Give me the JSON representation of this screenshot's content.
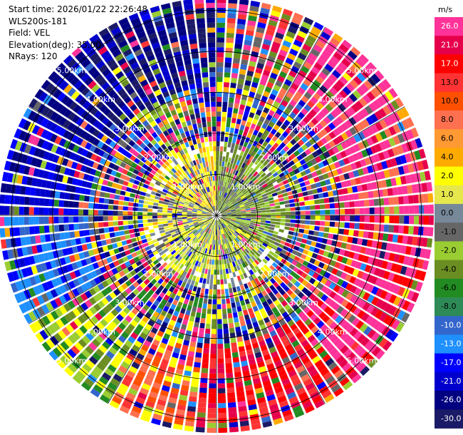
{
  "header": {
    "start_time": "Start time: 2026/01/22 22:26:48",
    "instrument": "WLS200s-181",
    "field": "Field: VEL",
    "elevation": "Elevation(deg): 35.00",
    "nrays": "NRays: 120"
  },
  "chart_data": {
    "type": "heatmap",
    "projection": "polar-ppi",
    "field": "VEL",
    "units": "m/s",
    "nrays": 120,
    "elevation_deg": 35.0,
    "max_range_km": 5.3,
    "range_ring_labels": [
      "1.00km",
      "2.00km",
      "3.00km",
      "4.00km",
      "5.00km"
    ],
    "colorbar": {
      "unit_label": "m/s",
      "tick_labels": [
        "26.0",
        "21.0",
        "17.0",
        "13.0",
        "10.0",
        "8.0",
        "6.0",
        "4.0",
        "2.0",
        "1.0",
        "0.0",
        "-1.0",
        "-2.0",
        "-4.0",
        "-6.0",
        "-8.0",
        "-10.0",
        "-13.0",
        "-17.0",
        "-21.0",
        "-26.0",
        "-30.0"
      ],
      "colors": [
        "#ff3399",
        "#e6004c",
        "#ff0000",
        "#ff3333",
        "#ff5000",
        "#ff7050",
        "#ff9933",
        "#ffaa00",
        "#ffff00",
        "#e6e64d",
        "#778899",
        "#666666",
        "#9acd32",
        "#6b8e23",
        "#228b22",
        "#2e8b57",
        "#3366cc",
        "#1e90ff",
        "#0000ff",
        "#0000cc",
        "#000080",
        "#1a1a66"
      ]
    },
    "sectors": [
      {
        "az": [
          0,
          30
        ],
        "inner": "olive-green",
        "outer": "mixed-noise"
      },
      {
        "az": [
          30,
          90
        ],
        "inner": "olive-green",
        "outer": "pink-magenta"
      },
      {
        "az": [
          90,
          180
        ],
        "inner": "yellow-olive",
        "outer": "pink-red"
      },
      {
        "az": [
          180,
          240
        ],
        "inner": "grey-yellow",
        "outer": "red-orange"
      },
      {
        "az": [
          240,
          300
        ],
        "inner": "yellow-grey",
        "outer": "blue"
      },
      {
        "az": [
          300,
          360
        ],
        "inner": "yellow",
        "outer": "navy-blue"
      }
    ]
  }
}
